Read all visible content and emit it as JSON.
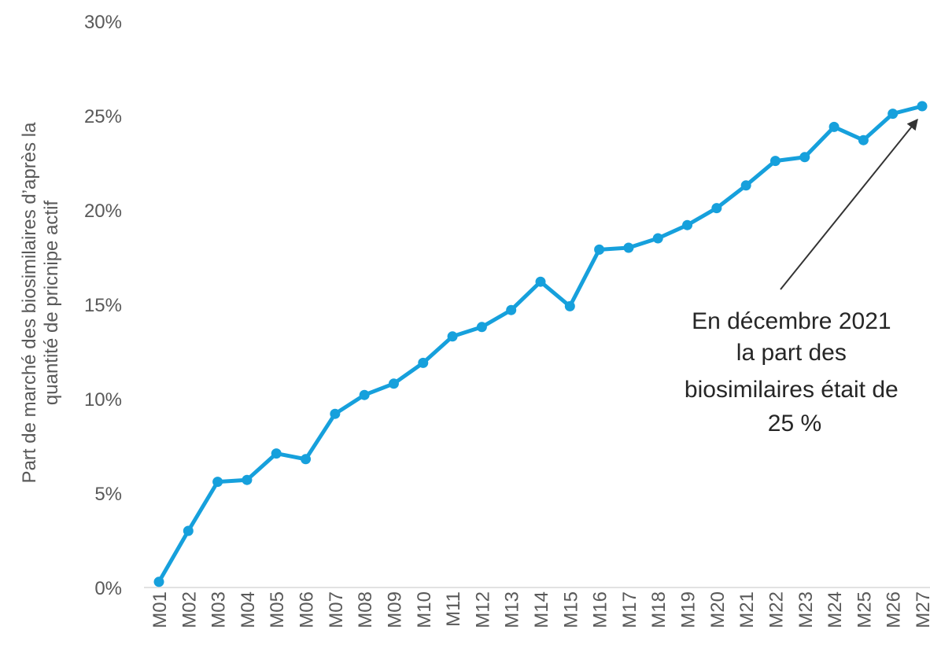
{
  "chart_data": {
    "type": "line",
    "y_label": [
      "Part de marché des biosimilaires d’après la",
      "quantité de pricnipe actif"
    ],
    "categories": [
      "M01",
      "M02",
      "M03",
      "M04",
      "M05",
      "M06",
      "M07",
      "M08",
      "M09",
      "M10",
      "M11",
      "M12",
      "M13",
      "M14",
      "M15",
      "M16",
      "M17",
      "M18",
      "M19",
      "M20",
      "M21",
      "M22",
      "M23",
      "M24",
      "M25",
      "M26",
      "M27"
    ],
    "series": [
      {
        "color": "#16a0dc",
        "values": [
          0.3,
          3.0,
          5.6,
          5.7,
          7.1,
          6.8,
          9.2,
          10.2,
          10.8,
          11.9,
          13.3,
          13.8,
          14.7,
          16.2,
          14.9,
          17.9,
          18.0,
          18.5,
          19.2,
          20.1,
          21.3,
          22.6,
          22.8,
          24.4,
          23.7,
          25.1,
          25.5
        ]
      }
    ],
    "ylim": [
      0,
      30
    ],
    "yticks": [
      {
        "value": 0,
        "label": "0%"
      },
      {
        "value": 5,
        "label": "5%"
      },
      {
        "value": 10,
        "label": "10%"
      },
      {
        "value": 15,
        "label": "15%"
      },
      {
        "value": 20,
        "label": "20%"
      },
      {
        "value": 25,
        "label": "25%"
      },
      {
        "value": 30,
        "label": "30%"
      }
    ],
    "annotation": [
      "En décembre 2021",
      "la part des",
      "biosimilaires était de",
      "25 %"
    ]
  }
}
